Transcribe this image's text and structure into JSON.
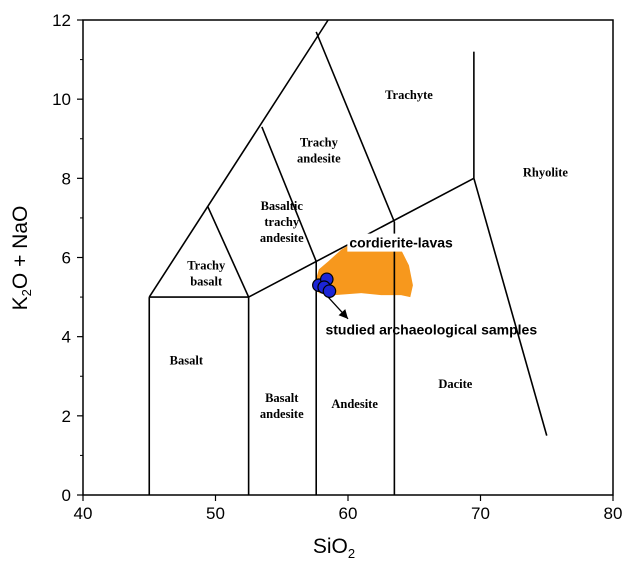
{
  "chart_data": {
    "type": "scatter",
    "title": "",
    "xlabel_main": "SiO",
    "xlabel_sub": "2",
    "ylabel_k": "K",
    "ylabel_sub": "2",
    "ylabel_rest": "O + NaO",
    "xlim": [
      40,
      80
    ],
    "ylim": [
      0,
      12
    ],
    "x_ticks": [
      "40",
      "50",
      "60",
      "70",
      "80"
    ],
    "y_ticks": [
      "0",
      "2",
      "4",
      "6",
      "8",
      "10",
      "12"
    ],
    "grid": false,
    "field_labels": [
      {
        "lines": [
          "Basalt"
        ],
        "x": 47.8,
        "y": 3.3
      },
      {
        "lines": [
          "Trachy",
          "basalt"
        ],
        "x": 49.3,
        "y": 5.7
      },
      {
        "lines": [
          "Basalt",
          "andesite"
        ],
        "x": 55.0,
        "y": 2.35
      },
      {
        "lines": [
          "Basaltic",
          "trachy",
          "andesite"
        ],
        "x": 55.0,
        "y": 7.2
      },
      {
        "lines": [
          "Andesite"
        ],
        "x": 60.5,
        "y": 2.2
      },
      {
        "lines": [
          "Trachy",
          "andesite"
        ],
        "x": 57.8,
        "y": 8.8
      },
      {
        "lines": [
          "Trachyte"
        ],
        "x": 64.6,
        "y": 10.0
      },
      {
        "lines": [
          "Dacite"
        ],
        "x": 68.1,
        "y": 2.7
      },
      {
        "lines": [
          "Rhyolite"
        ],
        "x": 74.9,
        "y": 8.05
      }
    ],
    "boundary_lines": [
      [
        [
          45,
          0
        ],
        [
          45,
          5
        ]
      ],
      [
        [
          52.5,
          0
        ],
        [
          52.5,
          5
        ]
      ],
      [
        [
          57.6,
          0
        ],
        [
          57.6,
          5.9
        ]
      ],
      [
        [
          63.5,
          0
        ],
        [
          63.5,
          6.9
        ]
      ],
      [
        [
          45,
          5
        ],
        [
          52.5,
          5
        ]
      ],
      [
        [
          52.5,
          5
        ],
        [
          69.5,
          8
        ]
      ],
      [
        [
          45,
          5
        ],
        [
          58.5,
          12
        ]
      ],
      [
        [
          49.4,
          7.3
        ],
        [
          52.5,
          5
        ]
      ],
      [
        [
          53.5,
          9.3
        ],
        [
          57.6,
          5.9
        ]
      ],
      [
        [
          57.6,
          11.7
        ],
        [
          63.5,
          6.9
        ]
      ],
      [
        [
          69.5,
          8
        ],
        [
          69.5,
          11.2
        ]
      ],
      [
        [
          69.5,
          8
        ],
        [
          75,
          1.5
        ]
      ]
    ],
    "region": {
      "name": "cordierite-lavas",
      "color": "#F7981D",
      "outline": [
        [
          57.5,
          5.35
        ],
        [
          57.8,
          5.7
        ],
        [
          58.5,
          5.9
        ],
        [
          59.5,
          6.2
        ],
        [
          60.5,
          6.4
        ],
        [
          61.5,
          6.55
        ],
        [
          62.3,
          6.6
        ],
        [
          63,
          6.5
        ],
        [
          64,
          6.2
        ],
        [
          64.6,
          5.8
        ],
        [
          64.9,
          5.3
        ],
        [
          64.7,
          5.0
        ],
        [
          64.0,
          5.05
        ],
        [
          62.5,
          5.05
        ],
        [
          61.0,
          5.1
        ],
        [
          59.0,
          5.05
        ],
        [
          57.8,
          5.1
        ]
      ]
    },
    "series": [
      {
        "name": "studied archaeological samples",
        "color": "#1C25D6",
        "points": [
          {
            "x": 57.8,
            "y": 5.3
          },
          {
            "x": 58.4,
            "y": 5.45
          },
          {
            "x": 58.2,
            "y": 5.25
          },
          {
            "x": 58.6,
            "y": 5.15
          }
        ]
      }
    ],
    "annotations": [
      {
        "text": "cordierite-lavas",
        "x": 60.1,
        "y": 6.25,
        "box": true
      },
      {
        "text": "studied archaeological samples",
        "x": 58.3,
        "y": 4.05,
        "box": false
      }
    ],
    "arrow": {
      "from": [
        58.5,
        5.0
      ],
      "to": [
        60.0,
        4.45
      ]
    }
  }
}
